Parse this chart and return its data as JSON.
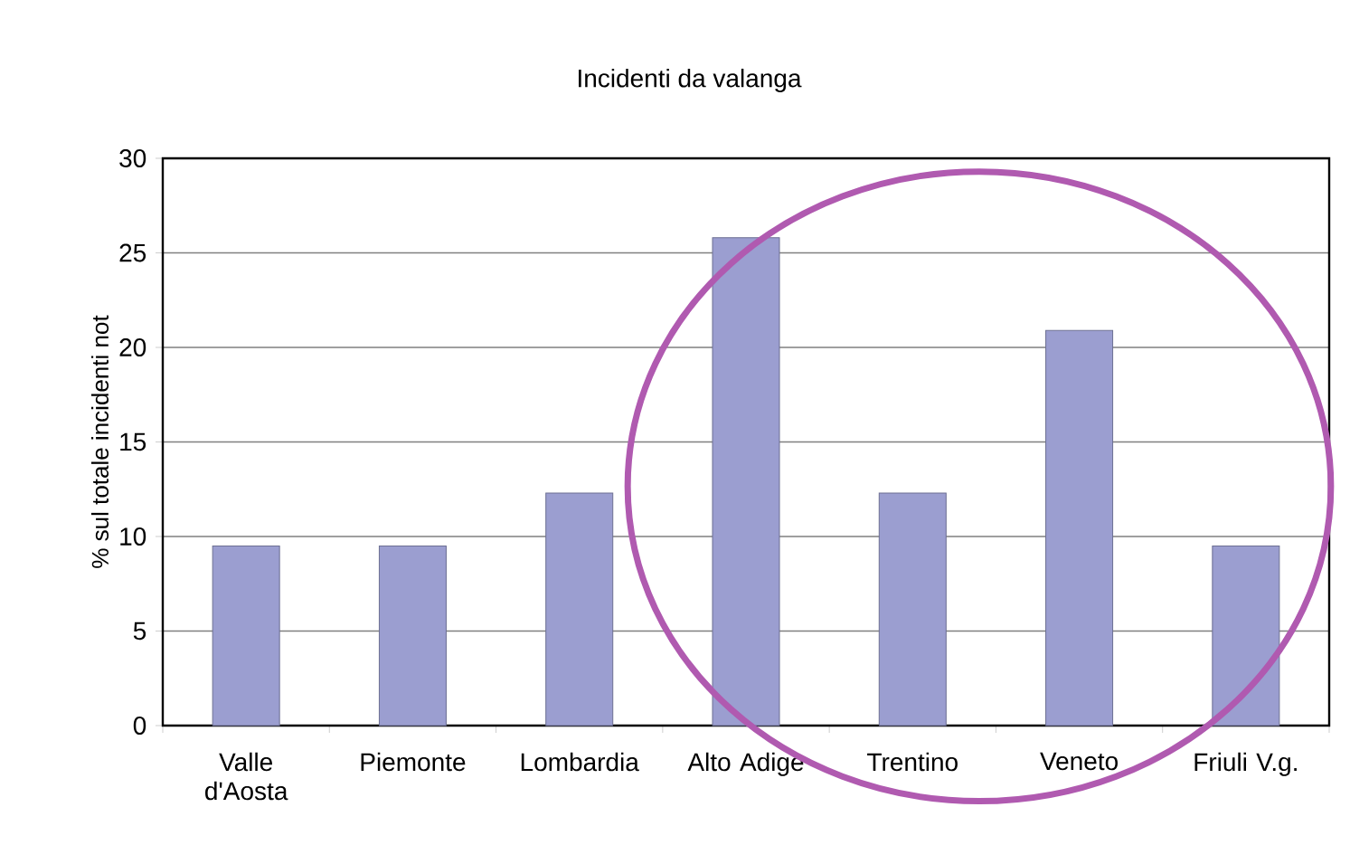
{
  "chart_data": {
    "type": "bar",
    "title": "Incidenti da valanga",
    "ylabel": "% sul totale incidenti not",
    "categories": [
      "Valle d'Aosta",
      "Piemonte",
      "Lombardia",
      "Alto Adige",
      "Trentino",
      "Veneto",
      "Friuli V.g."
    ],
    "values": [
      9.5,
      9.5,
      12.3,
      25.8,
      12.3,
      20.9,
      9.5
    ],
    "color": "#9b9ed0",
    "ylim": [
      0,
      30
    ],
    "yticks": [
      0,
      5,
      10,
      15,
      20,
      25,
      30
    ],
    "grid": "y"
  }
}
